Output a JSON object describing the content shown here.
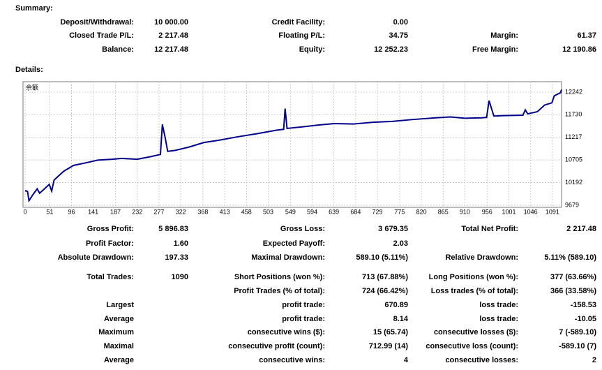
{
  "summary": {
    "title": "Summary:",
    "rows": [
      {
        "left": {
          "label": "Deposit/Withdrawal:",
          "value": "10 000.00"
        },
        "mid": {
          "label": "Credit Facility:",
          "value": "0.00"
        }
      },
      {
        "left": {
          "label": "Closed Trade P/L:",
          "value": "2 217.48"
        },
        "mid": {
          "label": "Floating P/L:",
          "value": "34.75"
        },
        "right": {
          "label": "Margin:",
          "value": "61.37"
        }
      },
      {
        "left": {
          "label": "Balance:",
          "value": "12 217.48"
        },
        "mid": {
          "label": "Equity:",
          "value": "12 252.23"
        },
        "right": {
          "label": "Free Margin:",
          "value": "12 190.86"
        }
      }
    ]
  },
  "details": {
    "title": "Details:",
    "chart": {
      "type": "line",
      "label": "余额",
      "color": "#00008b",
      "x": [
        0,
        5,
        8,
        15,
        25,
        30,
        40,
        50,
        55,
        60,
        70,
        80,
        100,
        130,
        150,
        180,
        200,
        232,
        260,
        280,
        284,
        290,
        295,
        310,
        340,
        370,
        400,
        440,
        480,
        520,
        535,
        538,
        542,
        570,
        610,
        640,
        680,
        720,
        760,
        800,
        850,
        880,
        910,
        945,
        955,
        960,
        970,
        990,
        1030,
        1035,
        1040,
        1060,
        1075,
        1090,
        1095,
        1108,
        1110
      ],
      "values": [
        10010,
        9990,
        9780,
        9900,
        10050,
        9950,
        10050,
        10150,
        10000,
        10250,
        10350,
        10450,
        10580,
        10650,
        10700,
        10720,
        10740,
        10720,
        10780,
        10830,
        11510,
        11200,
        10900,
        10920,
        11000,
        11100,
        11150,
        11230,
        11300,
        11380,
        11400,
        11870,
        11420,
        11450,
        11500,
        11530,
        11520,
        11560,
        11580,
        11620,
        11660,
        11680,
        11650,
        11660,
        11670,
        12050,
        11700,
        11710,
        11720,
        11840,
        11750,
        11800,
        11950,
        12000,
        12160,
        12230,
        12300
      ],
      "xlim": [
        0,
        1110
      ],
      "ylim": [
        9630,
        12480
      ],
      "xticks": [
        0,
        51,
        96,
        141,
        187,
        232,
        277,
        322,
        368,
        413,
        458,
        503,
        549,
        594,
        639,
        684,
        729,
        775,
        820,
        865,
        910,
        956,
        1001,
        1046,
        1091
      ],
      "yticks": [
        9679,
        10192,
        10705,
        11217,
        11730,
        12242
      ],
      "grid": true
    },
    "rows": [
      {
        "left": {
          "label": "Gross Profit:",
          "value": "5 896.83"
        },
        "mid": {
          "label": "Gross Loss:",
          "value": "3 679.35"
        },
        "right": {
          "label": "Total Net Profit:",
          "value": "2 217.48"
        }
      },
      {
        "left": {
          "label": "Profit Factor:",
          "value": "1.60"
        },
        "mid": {
          "label": "Expected Payoff:",
          "value": "2.03"
        }
      },
      {
        "left": {
          "label": "Absolute Drawdown:",
          "value": "197.33"
        },
        "mid": {
          "label": "Maximal Drawdown:",
          "value": "589.10 (5.11%)"
        },
        "right": {
          "label": "Relative Drawdown:",
          "value": "5.11% (589.10)"
        }
      },
      {
        "left": {
          "label": "Total Trades:",
          "value": "1090"
        },
        "mid": {
          "label": "Short Positions (won %):",
          "value": "713 (67.88%)"
        },
        "right": {
          "label": "Long Positions (won %):",
          "value": "377 (63.66%)"
        }
      },
      {
        "mid": {
          "label": "Profit Trades (% of total):",
          "value": "724 (66.42%)"
        },
        "right": {
          "label": "Loss trades (% of total):",
          "value": "366 (33.58%)"
        }
      },
      {
        "left": {
          "label": "Largest"
        },
        "mid": {
          "label": "profit trade:",
          "value": "670.89"
        },
        "right": {
          "label": "loss trade:",
          "value": "-158.53"
        }
      },
      {
        "left": {
          "label": "Average"
        },
        "mid": {
          "label": "profit trade:",
          "value": "8.14"
        },
        "right": {
          "label": "loss trade:",
          "value": "-10.05"
        }
      },
      {
        "left": {
          "label": "Maximum"
        },
        "mid": {
          "label": "consecutive wins ($):",
          "value": "15 (65.74)"
        },
        "right": {
          "label": "consecutive losses ($):",
          "value": "7 (-589.10)"
        }
      },
      {
        "left": {
          "label": "Maximal"
        },
        "mid": {
          "label": "consecutive profit (count):",
          "value": "712.99 (14)"
        },
        "right": {
          "label": "consecutive loss (count):",
          "value": "-589.10 (7)"
        }
      },
      {
        "left": {
          "label": "Average"
        },
        "mid": {
          "label": "consecutive wins:",
          "value": "4"
        },
        "right": {
          "label": "consecutive losses:",
          "value": "2"
        }
      }
    ]
  }
}
